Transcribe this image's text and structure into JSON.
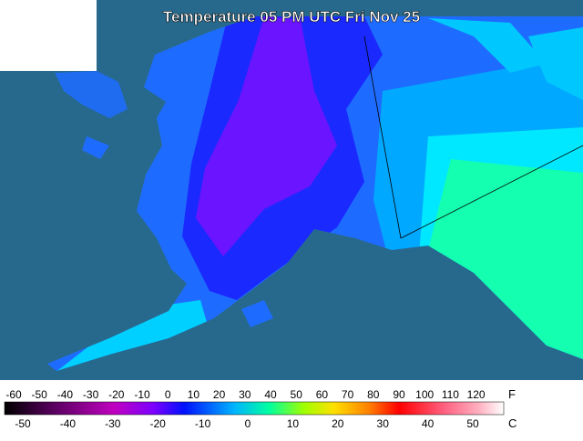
{
  "title": "Temperature 05 PM UTC Fri Nov 25",
  "legend": {
    "fahrenheit": {
      "unit": "F",
      "labels": [
        -60,
        -50,
        -40,
        -30,
        -20,
        -10,
        0,
        10,
        20,
        30,
        40,
        50,
        60,
        70,
        80,
        90,
        100,
        110,
        120
      ]
    },
    "celsius": {
      "unit": "C",
      "labels": [
        -50,
        -40,
        -30,
        -20,
        -10,
        0,
        10,
        20,
        30,
        40,
        50
      ]
    }
  }
}
